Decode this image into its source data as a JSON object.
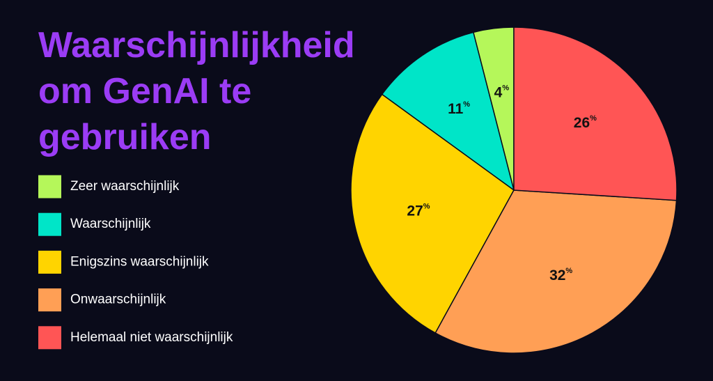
{
  "chart_data": {
    "type": "pie",
    "title": "Waarschijnlijkheid om GenAI te gebruiken",
    "categories": [
      "Zeer waarschijnlijk",
      "Waarschijnlijk",
      "Enigszins waarschijnlijk",
      "Onwaarschijnlijk",
      "Helemaal niet waarschijnlijk"
    ],
    "values": [
      4,
      11,
      27,
      32,
      26
    ],
    "value_labels": [
      "4%",
      "11%",
      "27%",
      "32%",
      "26%"
    ],
    "colors": [
      "#b5f75a",
      "#00e5c8",
      "#ffd400",
      "#ff9f55",
      "#ff5555"
    ]
  }
}
